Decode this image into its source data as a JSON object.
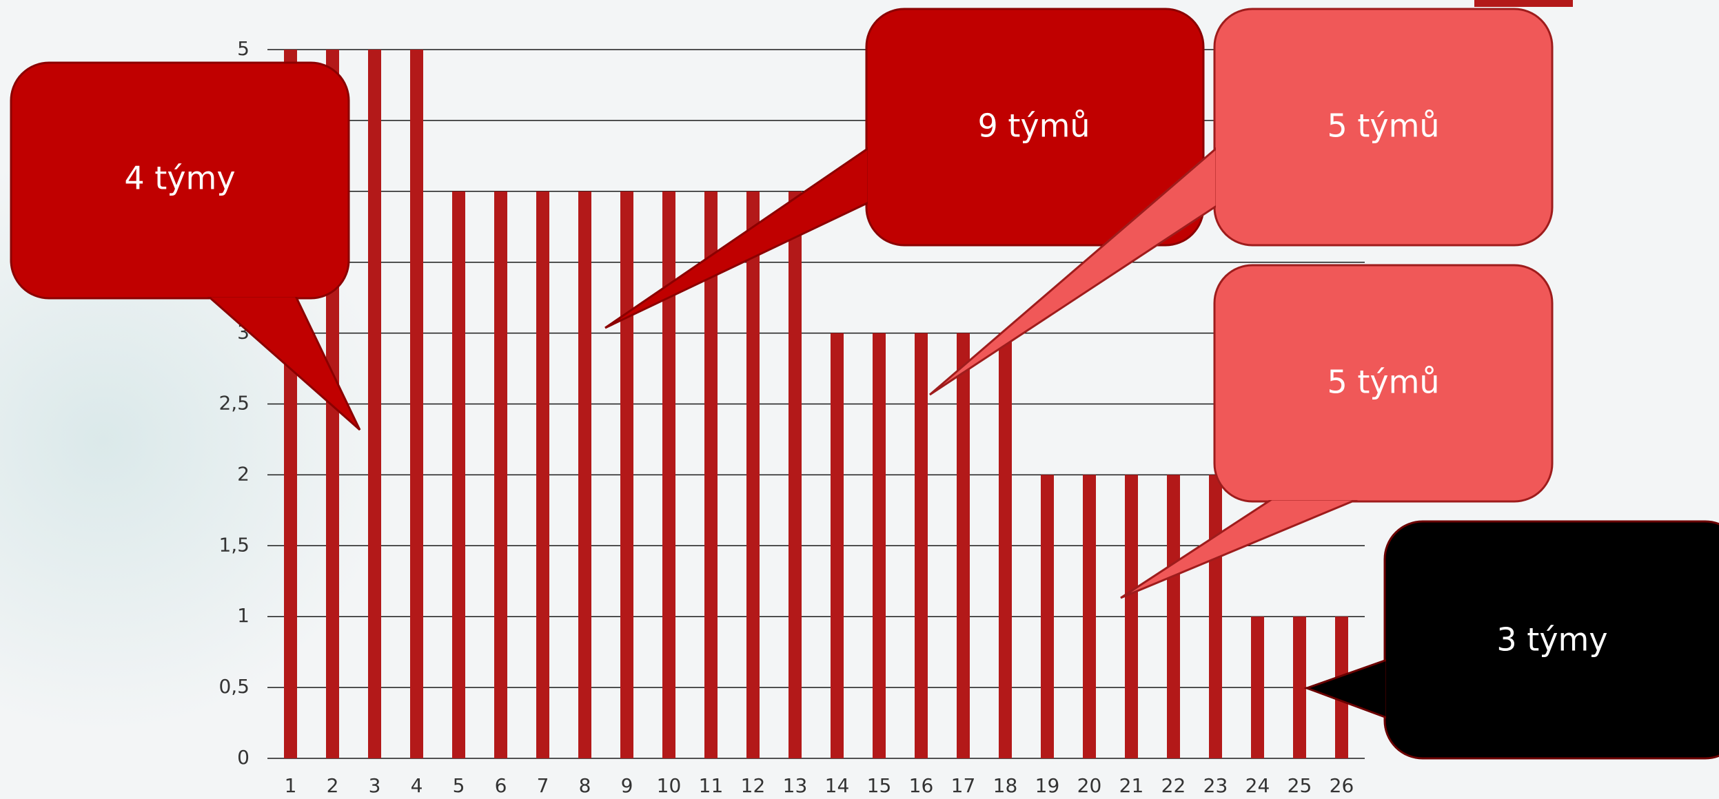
{
  "chart_data": {
    "type": "bar",
    "categories": [
      "1",
      "2",
      "3",
      "4",
      "5",
      "6",
      "7",
      "8",
      "9",
      "10",
      "11",
      "12",
      "13",
      "14",
      "15",
      "16",
      "17",
      "18",
      "19",
      "20",
      "21",
      "22",
      "23",
      "24",
      "25",
      "26"
    ],
    "values": [
      5,
      5,
      5,
      5,
      4,
      4,
      4,
      4,
      4,
      4,
      4,
      4,
      4,
      3,
      3,
      3,
      3,
      3,
      2,
      2,
      2,
      2,
      2,
      1,
      1,
      1
    ],
    "color": "#b31919",
    "ylim": [
      0,
      5
    ],
    "yticks": [
      0,
      {
        "value": 0.5,
        "label": "0,5"
      },
      1,
      {
        "value": 1.5,
        "label": "1,5"
      },
      2,
      {
        "value": 2.5,
        "label": "2,5"
      },
      3,
      {
        "value": 3.5,
        "label": "3,5"
      },
      4,
      {
        "value": 4.5,
        "label": "4,5"
      },
      5
    ],
    "grid": true,
    "annotations": [
      "4 týmy",
      "9 týmů",
      "5 týmů",
      "5 týmů",
      "3 týmy"
    ]
  }
}
